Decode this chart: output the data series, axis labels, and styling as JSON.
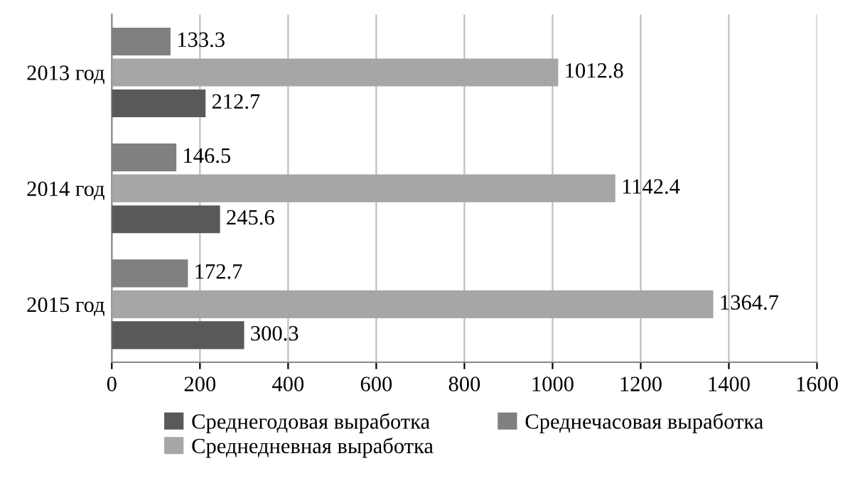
{
  "chart_data": {
    "type": "bar",
    "orientation": "horizontal",
    "categories": [
      "2013 год",
      "2014 год",
      "2015 год"
    ],
    "series": [
      {
        "name": "Среднегодовая выработка",
        "color": "#595959",
        "values": [
          212.7,
          245.6,
          300.3
        ]
      },
      {
        "name": "Среднедневная выработка",
        "color": "#a6a6a6",
        "values": [
          1012.8,
          1142.4,
          1364.7
        ]
      },
      {
        "name": "Среднечасовая выработка",
        "color": "#808080",
        "values": [
          133.3,
          146.5,
          172.7
        ]
      }
    ],
    "xlim": [
      0,
      1600
    ],
    "xticks": [
      0,
      200,
      400,
      600,
      800,
      1000,
      1200,
      1400,
      1600
    ],
    "grid": "x",
    "legend": "bottom",
    "data_labels": true
  }
}
